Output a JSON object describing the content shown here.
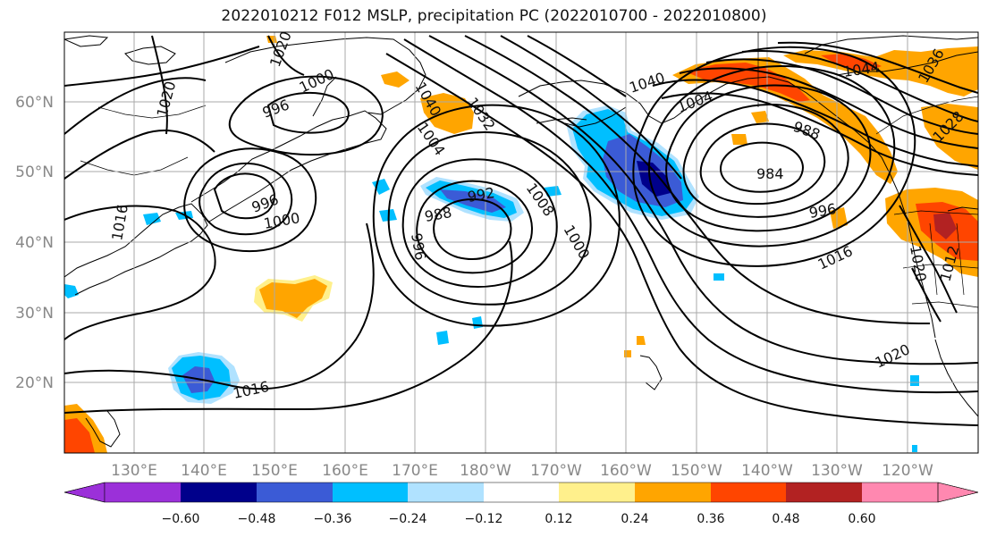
{
  "title": "2022010212 F012 MSLP, precipitation PC (2022010700 - 2022010800)",
  "map": {
    "lat_labels": [
      "60°N",
      "50°N",
      "40°N",
      "30°N",
      "20°N"
    ],
    "lon_labels": [
      "130°E",
      "140°E",
      "150°E",
      "160°E",
      "170°E",
      "180°W",
      "170°W",
      "160°W",
      "150°W",
      "140°W",
      "130°W",
      "120°W"
    ],
    "contour_labels": [
      "1020",
      "1020",
      "1000",
      "996",
      "1040",
      "1032",
      "1004",
      "1004",
      "1040",
      "1044",
      "1036",
      "1028",
      "988",
      "992",
      "984",
      "996",
      "1016",
      "1000",
      "1000",
      "1008",
      "996",
      "996",
      "988",
      "1016",
      "1020",
      "1020",
      "1016",
      "1012"
    ]
  },
  "colorbar": {
    "colors": [
      "#9b30d9",
      "#00008b",
      "#3b5bd6",
      "#00bfff",
      "#b0e2ff",
      "#ffffff",
      "#fff08c",
      "#ffa500",
      "#ff4500",
      "#b22222",
      "#ff88b0"
    ],
    "ticks": [
      "−0.60",
      "−0.48",
      "−0.36",
      "−0.24",
      "−0.12",
      "0.12",
      "0.24",
      "0.36",
      "0.48",
      "0.60"
    ]
  }
}
